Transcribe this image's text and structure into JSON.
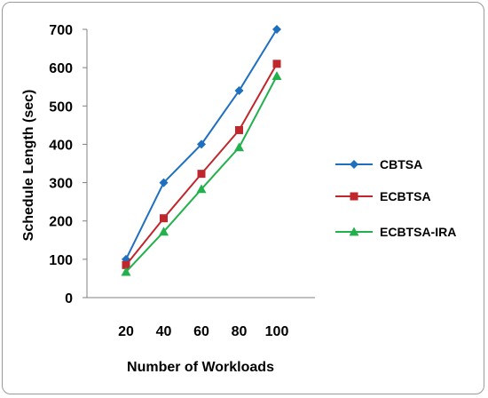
{
  "chart_data": {
    "type": "line",
    "title": "",
    "xlabel": "Number of Workloads",
    "ylabel": "Schedule Length (sec)",
    "categories": [
      "20",
      "40",
      "60",
      "80",
      "100"
    ],
    "ylim": [
      0,
      700
    ],
    "yticks": [
      "0",
      "100",
      "200",
      "300",
      "400",
      "500",
      "600",
      "700"
    ],
    "grid": false,
    "legend_position": "right",
    "series": [
      {
        "name": "CBTSA",
        "color": "#1f6fbf",
        "marker": "diamond",
        "values": [
          100,
          300,
          400,
          540,
          700
        ]
      },
      {
        "name": "ECBTSA",
        "color": "#c0272d",
        "marker": "square",
        "values": [
          85,
          207,
          323,
          437,
          610
        ]
      },
      {
        "name": "ECBTSA-IRA",
        "color": "#22b14c",
        "marker": "triangle",
        "values": [
          67,
          172,
          283,
          392,
          578
        ]
      }
    ]
  }
}
